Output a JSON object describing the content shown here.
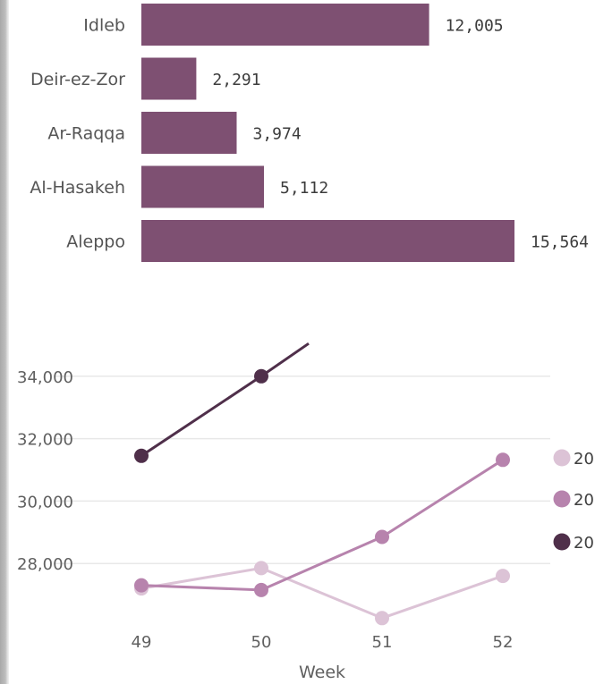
{
  "colors": {
    "bar": "#7e5072",
    "grid": "#e8e8e8",
    "series_light": "#dcc3d6",
    "series_mid": "#b783ad",
    "series_dark": "#4f2f4a"
  },
  "chart_data": [
    {
      "type": "bar",
      "orientation": "horizontal",
      "categories": [
        "Idleb",
        "Deir-ez-Zor",
        "Ar-Raqqa",
        "Al-Hasakeh",
        "Aleppo"
      ],
      "values": [
        12005,
        2291,
        3974,
        5112,
        15564
      ],
      "value_labels": [
        "12,005",
        "2,291",
        "3,974",
        "5,112",
        "15,564"
      ],
      "xlim": [
        0,
        15564
      ]
    },
    {
      "type": "line",
      "xlabel": "Week",
      "x": [
        49,
        50,
        51,
        52
      ],
      "x_tick_labels": [
        "49",
        "50",
        "51",
        "52"
      ],
      "ylim": [
        26200,
        35600
      ],
      "y_ticks": [
        28000,
        30000,
        32000,
        34000
      ],
      "y_tick_labels": [
        "28,000",
        "30,000",
        "32,000",
        "34,000"
      ],
      "grid": true,
      "legend_position": "right",
      "series": [
        {
          "name": "20",
          "color_key": "series_light",
          "values": [
            27200,
            27850,
            26250,
            27600
          ]
        },
        {
          "name": "20",
          "color_key": "series_mid",
          "values": [
            27300,
            27150,
            28850,
            31320
          ]
        },
        {
          "name": "20",
          "color_key": "series_dark",
          "values": [
            31450,
            34000,
            null,
            null
          ]
        }
      ],
      "dark_series_continuation_y": 35050
    }
  ]
}
